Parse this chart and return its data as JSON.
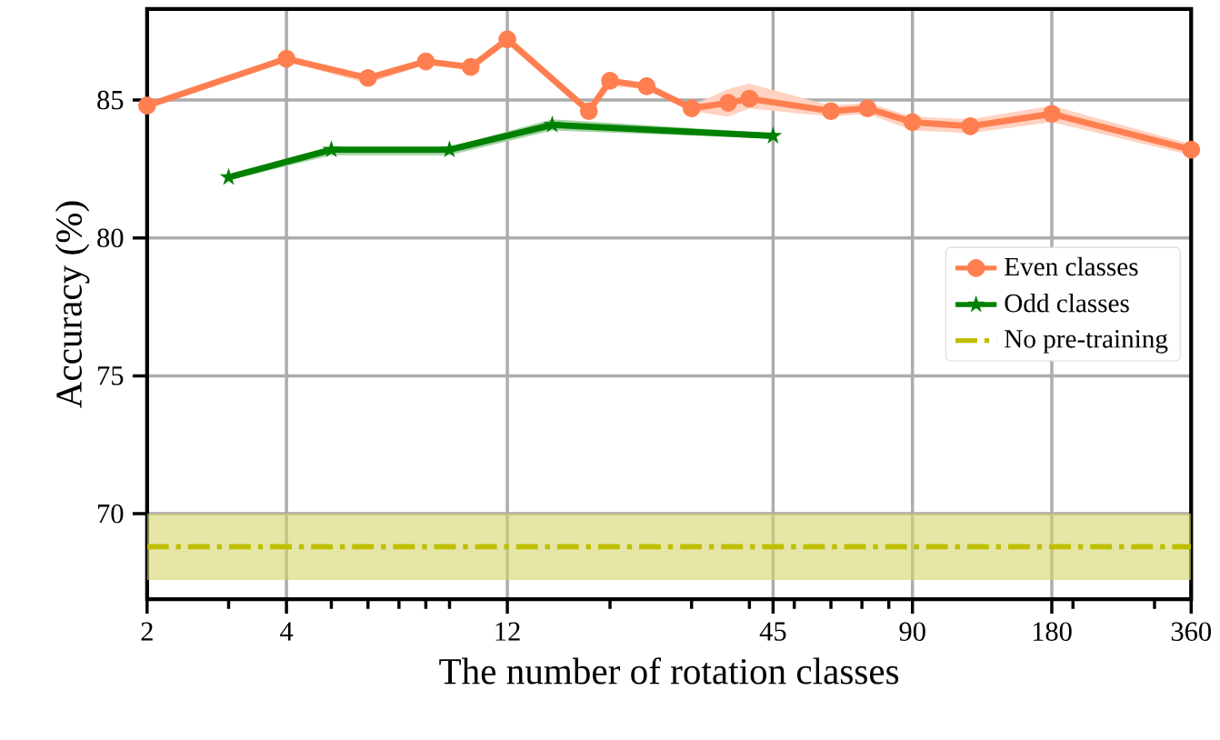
{
  "chart_data": {
    "type": "line",
    "xlabel": "The number of rotation classes",
    "ylabel": "Accuracy (%)",
    "log": "x",
    "grid": true,
    "legend": "right",
    "xlim": [
      2,
      360
    ],
    "ylim": [
      66.9,
      88.3
    ],
    "xticks": [
      2,
      {
        "value": 3,
        "label": null
      },
      4,
      {
        "value": 5,
        "label": null
      },
      {
        "value": 6,
        "label": null
      },
      {
        "value": 7,
        "label": null
      },
      {
        "value": 8,
        "label": null
      },
      {
        "value": 9,
        "label": null
      },
      12,
      {
        "value": 20,
        "label": null
      },
      {
        "value": 30,
        "label": null
      },
      {
        "value": 40,
        "label": null
      },
      45,
      {
        "value": 50,
        "label": null
      },
      {
        "value": 60,
        "label": null
      },
      {
        "value": 70,
        "label": null
      },
      {
        "value": 80,
        "label": null
      },
      90,
      180,
      {
        "value": 200,
        "label": null
      },
      {
        "value": 300,
        "label": null
      },
      360
    ],
    "yticks": [
      70,
      75,
      80,
      85
    ],
    "series": [
      {
        "name": "Even classes",
        "color": "#ff7f50",
        "marker": "circle",
        "x": [
          2,
          4,
          6,
          8,
          10,
          12,
          18,
          20,
          24,
          30,
          36,
          40,
          60,
          72,
          90,
          120,
          180,
          360
        ],
        "values": [
          84.8,
          86.5,
          85.8,
          86.4,
          86.2,
          87.2,
          84.6,
          85.7,
          85.5,
          84.7,
          84.9,
          85.05,
          84.6,
          84.7,
          84.2,
          84.05,
          84.5,
          83.2
        ],
        "lower": [
          84.7,
          86.4,
          85.6,
          86.3,
          86.1,
          87.1,
          84.5,
          85.5,
          85.4,
          84.6,
          84.4,
          84.7,
          84.4,
          84.5,
          83.9,
          83.8,
          84.2,
          83.0
        ],
        "upper": [
          84.9,
          86.6,
          85.9,
          86.5,
          86.3,
          87.3,
          84.7,
          85.8,
          85.6,
          84.8,
          85.4,
          85.6,
          84.8,
          84.9,
          84.4,
          84.3,
          84.8,
          83.4
        ]
      },
      {
        "name": "Odd classes",
        "color": "#008000",
        "marker": "star",
        "x": [
          3,
          5,
          9,
          15,
          45
        ],
        "values": [
          82.2,
          83.2,
          83.2,
          84.1,
          83.7
        ],
        "lower": [
          82.1,
          83.0,
          83.0,
          83.9,
          83.6
        ],
        "upper": [
          82.3,
          83.3,
          83.3,
          84.3,
          83.8
        ]
      }
    ],
    "ref_lines": [
      {
        "axis": "y",
        "value": 68.8,
        "label": "No pre-training",
        "color": "#bfbf00",
        "line_style": "dashdot"
      }
    ],
    "bands": [
      {
        "axis": "y",
        "from": 67.6,
        "to": 70.0,
        "color": "#d4d46a"
      }
    ]
  }
}
